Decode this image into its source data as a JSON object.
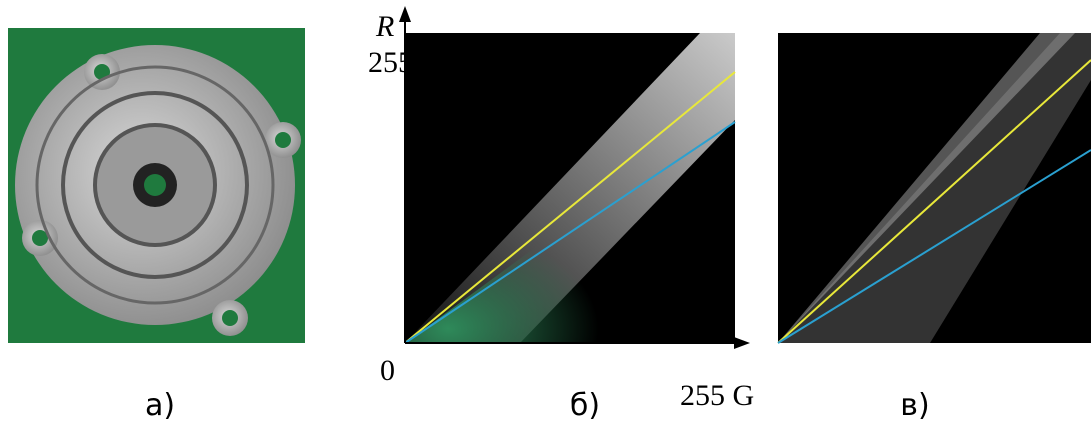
{
  "axes": {
    "y_label": "R",
    "y_max": "255",
    "origin": "0",
    "x_label": "255 G"
  },
  "captions": [
    "а)",
    "б)",
    "в)"
  ]
}
